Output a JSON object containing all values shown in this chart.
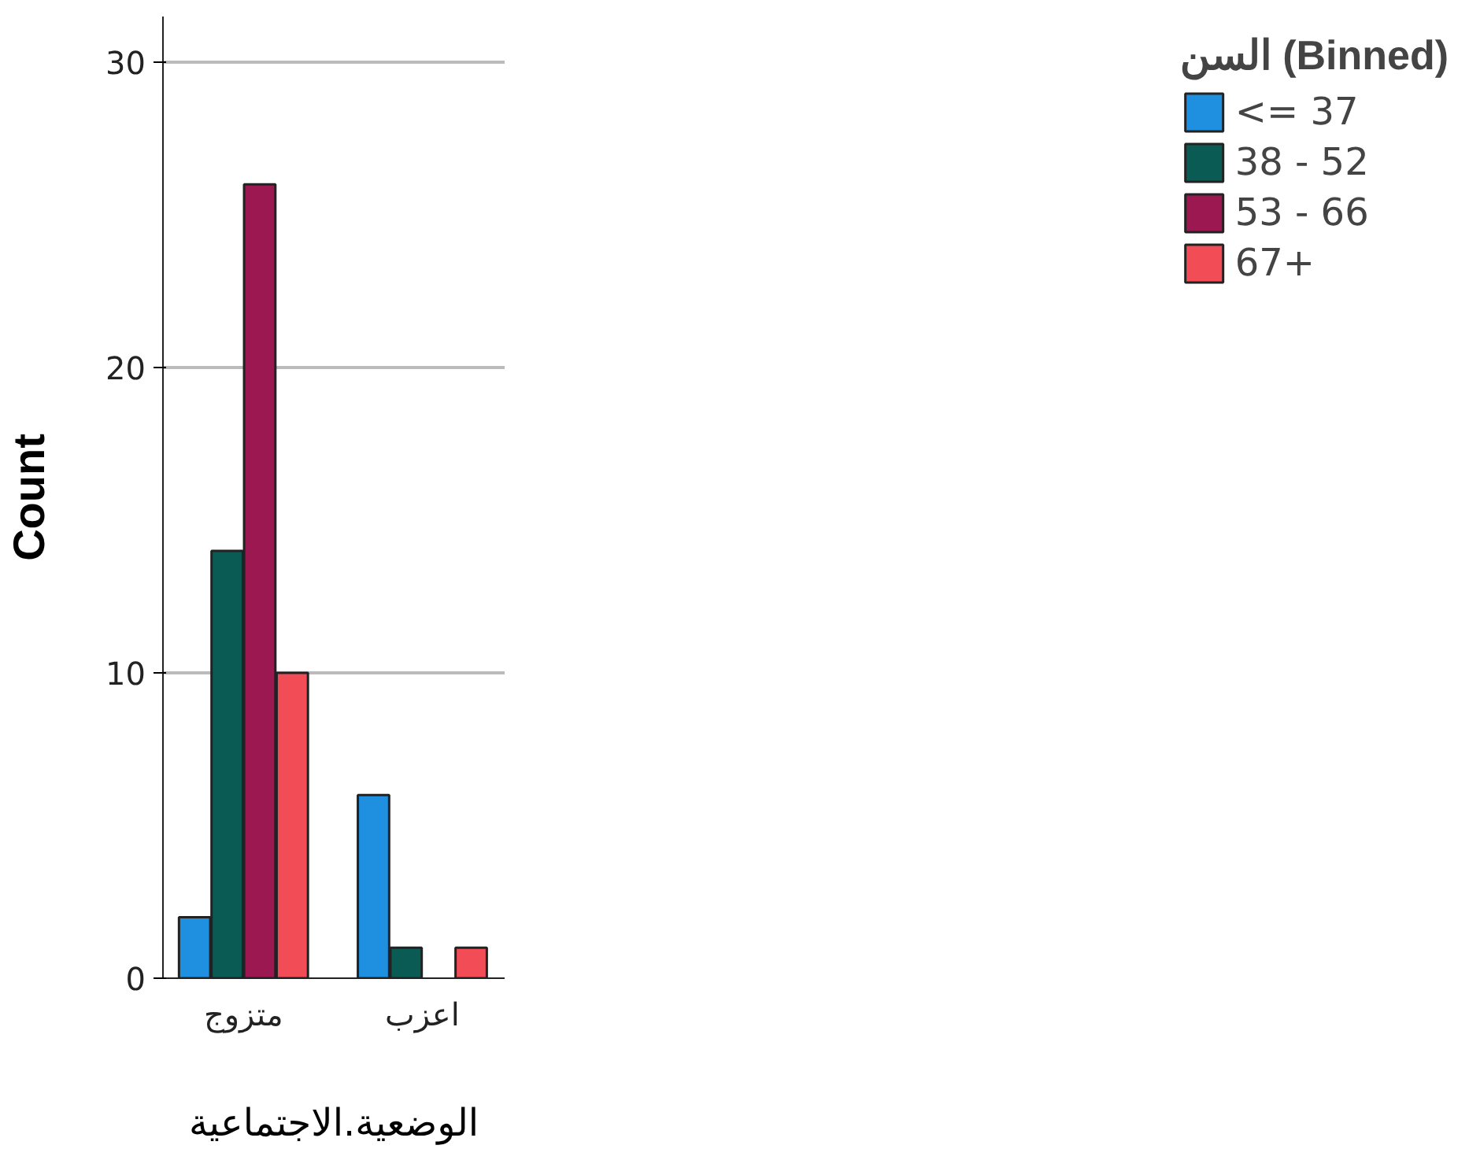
{
  "chart_data": {
    "type": "bar",
    "xlabel": "الوضعية.الاجتماعية",
    "ylabel": "Count",
    "legend_title": "السن (Binned)",
    "categories": [
      "متزوج",
      "اعزب"
    ],
    "series": [
      {
        "name": "<= 37",
        "color": "#1f8fe0",
        "values": [
          2,
          6
        ]
      },
      {
        "name": "38 - 52",
        "color": "#0b5b55",
        "values": [
          14,
          1
        ]
      },
      {
        "name": "53 - 66",
        "color": "#9b1850",
        "values": [
          26,
          null
        ]
      },
      {
        "name": "67+",
        "color": "#f24d57",
        "values": [
          10,
          1
        ]
      }
    ],
    "ylim": [
      0,
      31.5
    ],
    "yticks": [
      0,
      10,
      20,
      30
    ],
    "grid": "y",
    "legend": "right"
  }
}
